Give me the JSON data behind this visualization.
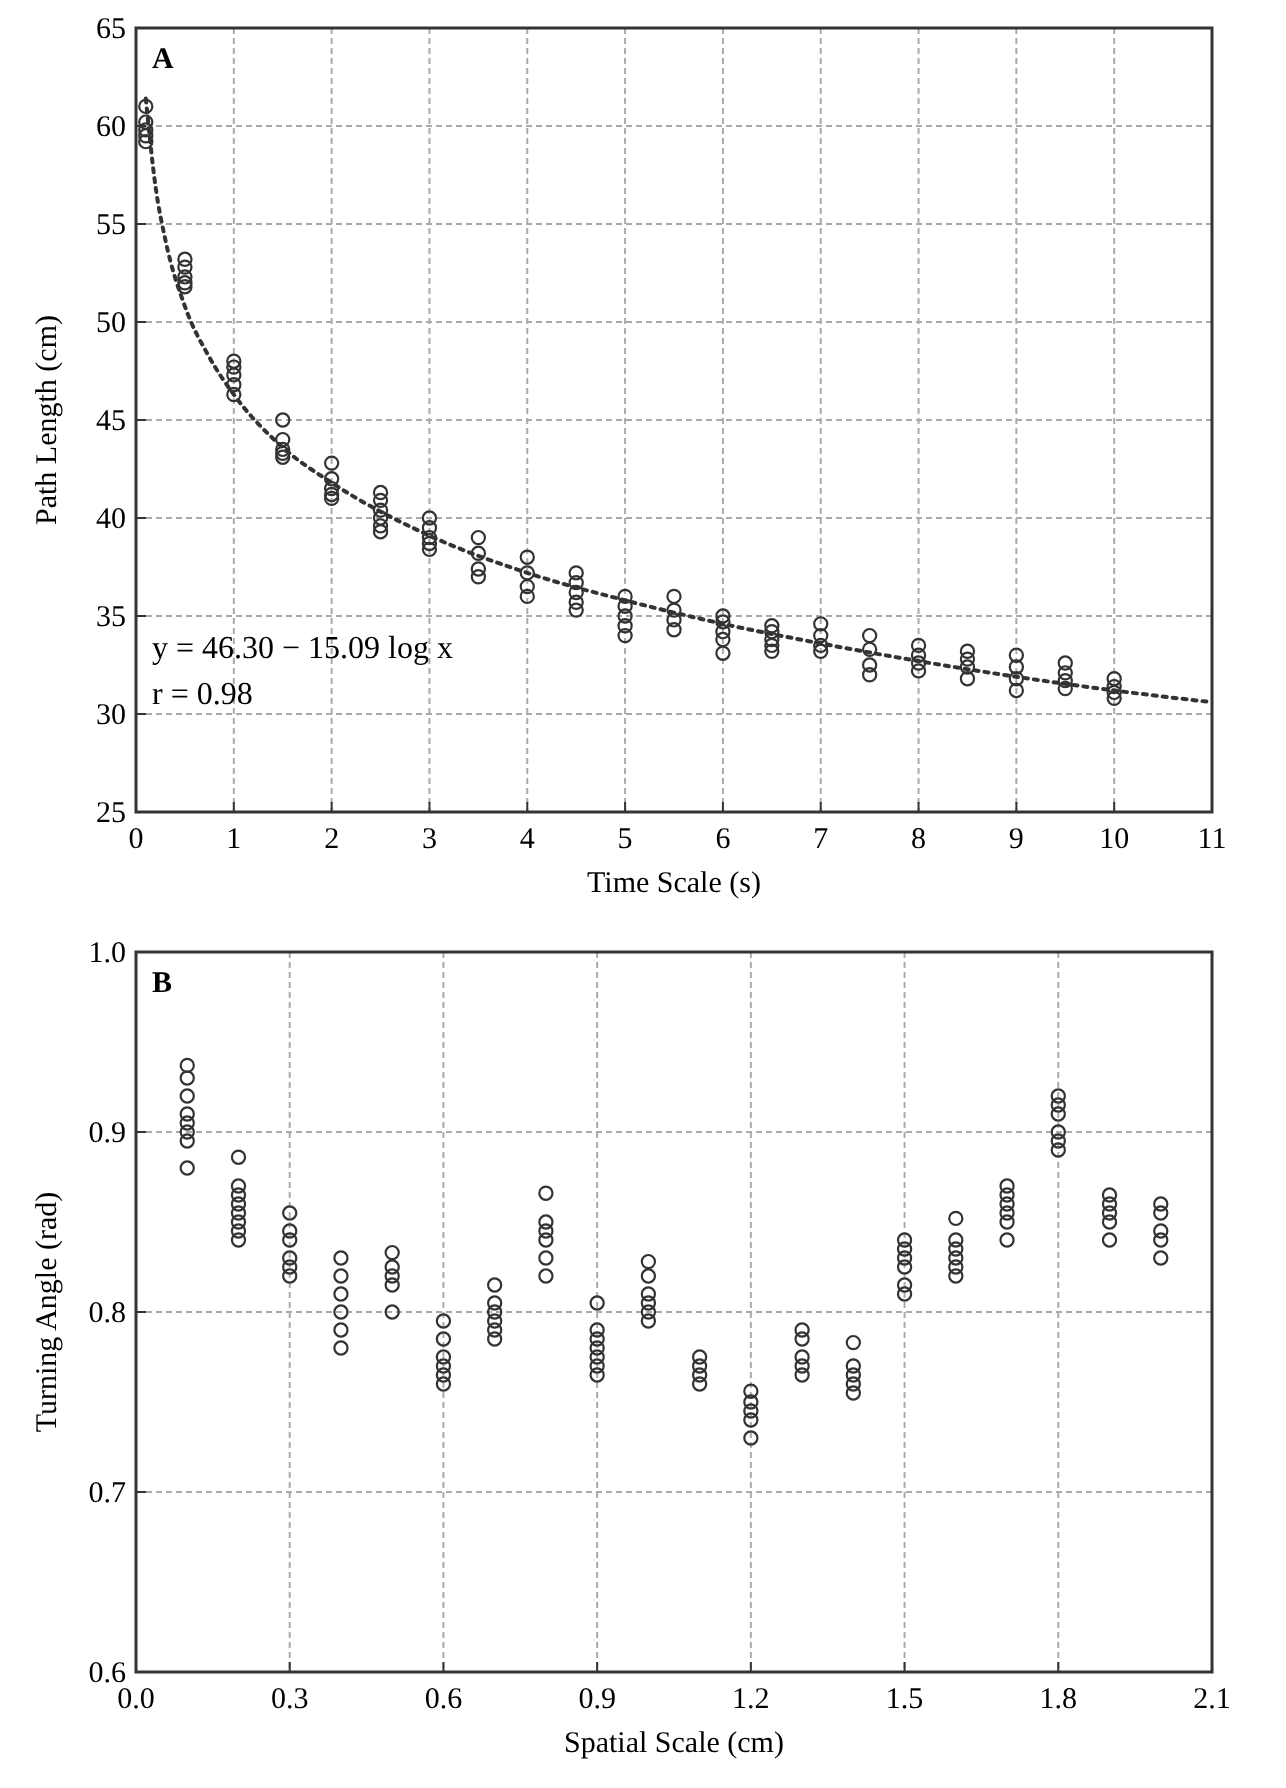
{
  "chart_data": [
    {
      "type": "scatter",
      "xlabel": "Time Scale (s)",
      "ylabel": "Path Length (cm)",
      "xlim": [
        0,
        11
      ],
      "ylim": [
        25,
        65
      ],
      "xticks": [
        0,
        1,
        2,
        3,
        4,
        5,
        6,
        7,
        8,
        9,
        10,
        11
      ],
      "yticks": [
        25,
        30,
        35,
        40,
        45,
        50,
        55,
        60,
        65
      ],
      "grid": true,
      "annotations": [
        "A",
        "y = 46.30 − 15.09 log x",
        "r = 0.98"
      ],
      "series": [
        {
          "marker": "circle",
          "color": "#333333",
          "x": [
            0.1,
            0.1,
            0.1,
            0.1,
            0.1,
            0.5,
            0.5,
            0.5,
            0.5,
            0.5,
            1,
            1,
            1,
            1,
            1,
            1.5,
            1.5,
            1.5,
            1.5,
            1.5,
            2,
            2,
            2,
            2,
            2,
            2.5,
            2.5,
            2.5,
            2.5,
            2.5,
            2.5,
            3,
            3,
            3,
            3,
            3,
            3.5,
            3.5,
            3.5,
            3.5,
            4,
            4,
            4,
            4,
            4.5,
            4.5,
            4.5,
            4.5,
            4.5,
            5,
            5,
            5,
            5,
            5,
            5.5,
            5.5,
            5.5,
            5.5,
            6,
            6,
            6,
            6,
            6,
            6.5,
            6.5,
            6.5,
            6.5,
            6.5,
            7,
            7,
            7,
            7,
            7.5,
            7.5,
            7.5,
            7.5,
            8,
            8,
            8,
            8,
            8.5,
            8.5,
            8.5,
            8.5,
            9,
            9,
            9,
            9,
            9.5,
            9.5,
            9.5,
            9.5,
            10,
            10,
            10,
            10
          ],
          "values": [
            61,
            60.2,
            59.8,
            59.5,
            59.2,
            53.2,
            52.8,
            52.3,
            52,
            51.8,
            48,
            47.7,
            47.3,
            46.8,
            46.3,
            45,
            44,
            43.5,
            43.3,
            43.1,
            42.8,
            42,
            41.5,
            41.2,
            41,
            41.3,
            40.9,
            40.4,
            40,
            39.6,
            39.3,
            40,
            39.5,
            39,
            38.7,
            38.4,
            39,
            38.2,
            37.4,
            37,
            38,
            37.2,
            36.5,
            36,
            37.2,
            36.7,
            36.2,
            35.7,
            35.3,
            36,
            35.5,
            35,
            34.5,
            34,
            36,
            35.3,
            34.8,
            34.3,
            35,
            34.7,
            34.2,
            33.8,
            33.1,
            34.5,
            34.2,
            33.8,
            33.5,
            33.2,
            34.6,
            34,
            33.5,
            33.2,
            34,
            33.3,
            32.5,
            32,
            33.5,
            33,
            32.6,
            32.2,
            33.2,
            32.8,
            32.4,
            31.8,
            33,
            32.4,
            31.8,
            31.2,
            32.6,
            32.1,
            31.7,
            31.3,
            31.8,
            31.4,
            31.1,
            30.8
          ]
        },
        {
          "type": "line",
          "line_style": "dotted",
          "color": "#333333",
          "x": [
            0.1,
            0.2,
            0.3,
            0.5,
            0.75,
            1,
            1.5,
            2,
            3,
            4,
            5,
            6,
            7,
            8,
            9,
            10,
            11
          ],
          "values": [
            61.4,
            56.9,
            54.2,
            50.8,
            48.2,
            46.3,
            43.6,
            41.8,
            39.1,
            37.2,
            35.8,
            34.6,
            33.6,
            32.7,
            31.9,
            31.2,
            30.6
          ]
        }
      ]
    },
    {
      "type": "scatter",
      "xlabel": "Spatial Scale (cm)",
      "ylabel": "Turning Angle (rad)",
      "xlim": [
        0,
        2.1
      ],
      "ylim": [
        0.6,
        1.0
      ],
      "xticks": [
        {
          "value": 0,
          "label": "0.0"
        },
        0.3,
        0.6,
        0.9,
        1.2,
        1.5,
        1.8,
        2.1
      ],
      "yticks": [
        0.6,
        0.7,
        0.8,
        0.9,
        {
          "value": 1,
          "label": "1.0"
        }
      ],
      "grid": true,
      "annotations": [
        "B"
      ],
      "series": [
        {
          "marker": "circle",
          "color": "#333333",
          "x": [
            0.1,
            0.1,
            0.1,
            0.1,
            0.1,
            0.1,
            0.1,
            0.1,
            0.2,
            0.2,
            0.2,
            0.2,
            0.2,
            0.2,
            0.2,
            0.2,
            0.3,
            0.3,
            0.3,
            0.3,
            0.3,
            0.3,
            0.4,
            0.4,
            0.4,
            0.4,
            0.4,
            0.4,
            0.5,
            0.5,
            0.5,
            0.5,
            0.5,
            0.6,
            0.6,
            0.6,
            0.6,
            0.6,
            0.6,
            0.7,
            0.7,
            0.7,
            0.7,
            0.7,
            0.7,
            0.8,
            0.8,
            0.8,
            0.8,
            0.8,
            0.8,
            0.9,
            0.9,
            0.9,
            0.9,
            0.9,
            0.9,
            0.9,
            1.0,
            1.0,
            1.0,
            1.0,
            1.0,
            1.0,
            1.1,
            1.1,
            1.1,
            1.1,
            1.2,
            1.2,
            1.2,
            1.2,
            1.2,
            1.3,
            1.3,
            1.3,
            1.3,
            1.3,
            1.4,
            1.4,
            1.4,
            1.4,
            1.4,
            1.5,
            1.5,
            1.5,
            1.5,
            1.5,
            1.5,
            1.6,
            1.6,
            1.6,
            1.6,
            1.6,
            1.6,
            1.7,
            1.7,
            1.7,
            1.7,
            1.7,
            1.7,
            1.8,
            1.8,
            1.8,
            1.8,
            1.8,
            1.8,
            1.9,
            1.9,
            1.9,
            1.9,
            1.9,
            2.0,
            2.0,
            2.0,
            2.0,
            2.0
          ],
          "values": [
            0.937,
            0.93,
            0.92,
            0.91,
            0.905,
            0.9,
            0.895,
            0.88,
            0.886,
            0.87,
            0.865,
            0.86,
            0.855,
            0.85,
            0.845,
            0.84,
            0.855,
            0.845,
            0.84,
            0.83,
            0.825,
            0.82,
            0.83,
            0.82,
            0.81,
            0.8,
            0.79,
            0.78,
            0.833,
            0.825,
            0.82,
            0.815,
            0.8,
            0.795,
            0.785,
            0.775,
            0.77,
            0.765,
            0.76,
            0.815,
            0.805,
            0.8,
            0.795,
            0.79,
            0.785,
            0.866,
            0.85,
            0.845,
            0.84,
            0.83,
            0.82,
            0.805,
            0.79,
            0.785,
            0.78,
            0.775,
            0.77,
            0.765,
            0.828,
            0.82,
            0.81,
            0.805,
            0.8,
            0.795,
            0.775,
            0.77,
            0.765,
            0.76,
            0.756,
            0.75,
            0.745,
            0.74,
            0.73,
            0.79,
            0.785,
            0.775,
            0.77,
            0.765,
            0.783,
            0.77,
            0.765,
            0.76,
            0.755,
            0.84,
            0.835,
            0.83,
            0.825,
            0.815,
            0.81,
            0.852,
            0.84,
            0.835,
            0.83,
            0.825,
            0.82,
            0.87,
            0.865,
            0.86,
            0.855,
            0.85,
            0.84,
            0.92,
            0.915,
            0.91,
            0.9,
            0.895,
            0.89,
            0.865,
            0.86,
            0.855,
            0.85,
            0.84,
            0.86,
            0.855,
            0.845,
            0.84,
            0.83
          ]
        }
      ]
    }
  ]
}
